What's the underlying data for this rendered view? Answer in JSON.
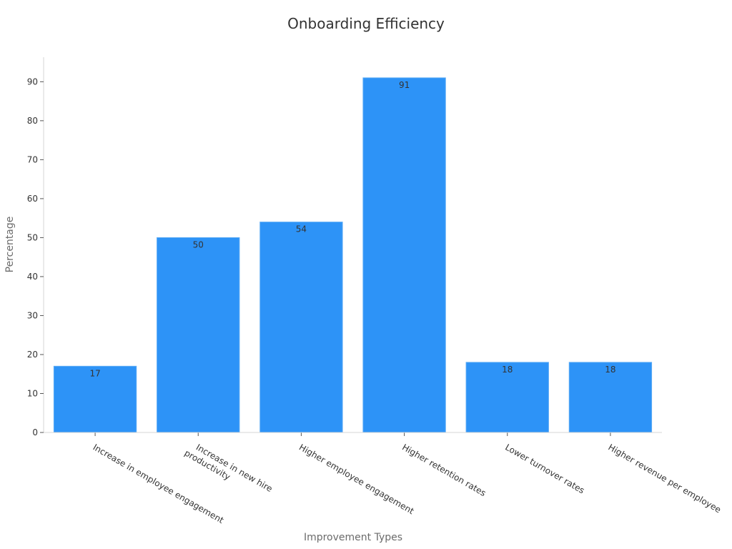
{
  "chart_data": {
    "type": "bar",
    "title": "Onboarding Efficiency",
    "xlabel": "Improvement Types",
    "ylabel": "Percentage",
    "categories": [
      [
        "Increase in employee engagement"
      ],
      [
        "Increase in new hire",
        "productivity"
      ],
      [
        "Higher employee engagement"
      ],
      [
        "Higher retention rates"
      ],
      [
        "Lower turnover rates"
      ],
      [
        "Higher revenue per employee"
      ]
    ],
    "values": [
      17,
      50,
      54,
      91,
      18,
      18
    ],
    "yticks": [
      0,
      10,
      20,
      30,
      40,
      50,
      60,
      70,
      80,
      90
    ],
    "ylim": [
      0,
      96.3
    ],
    "grid": false,
    "legend": "none",
    "bar_color": "#2d93f7"
  }
}
